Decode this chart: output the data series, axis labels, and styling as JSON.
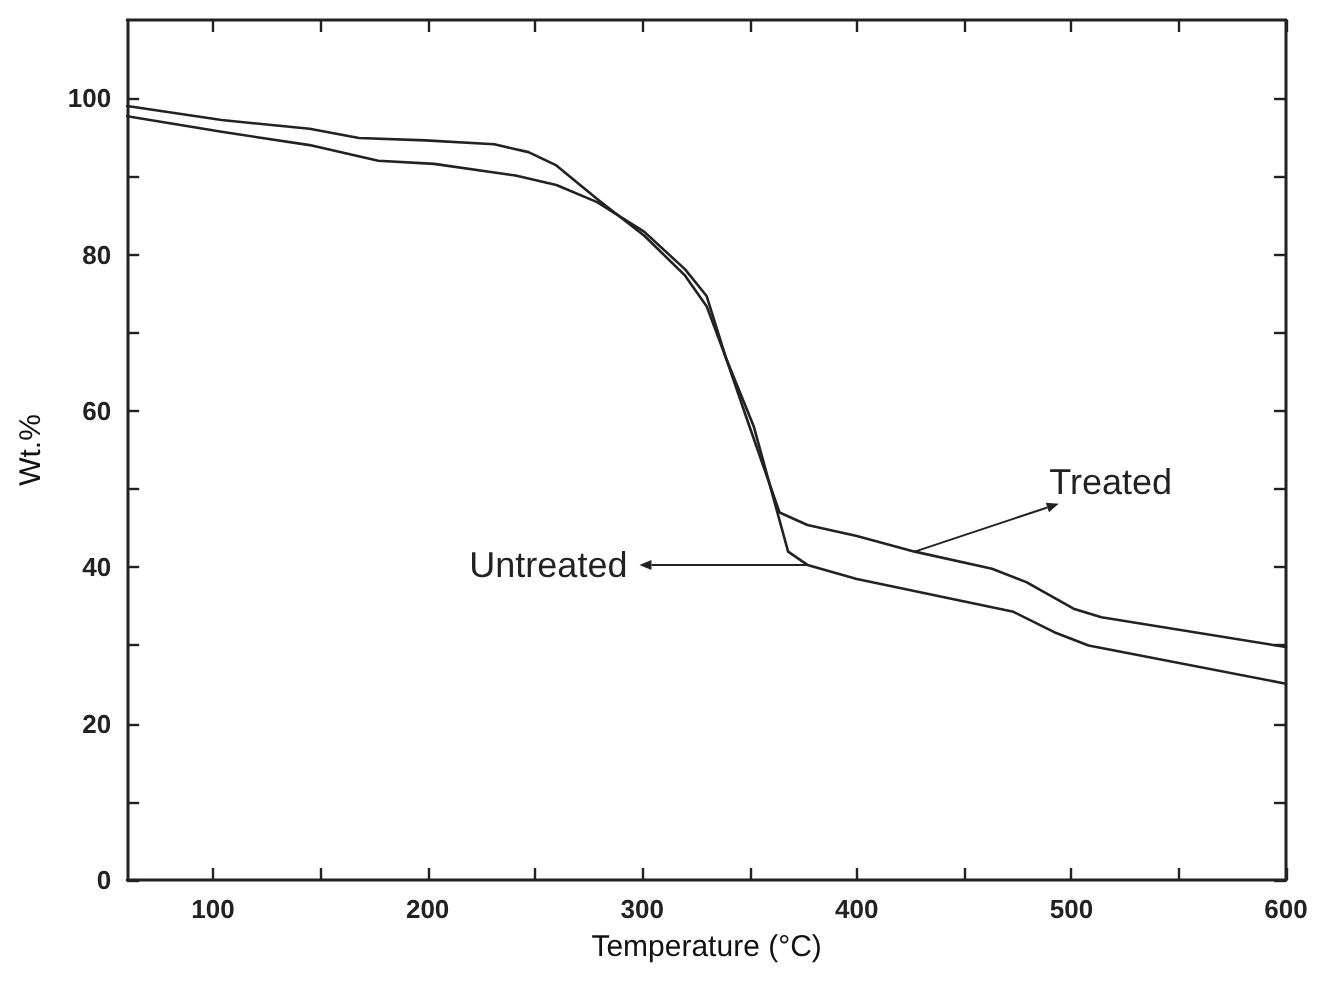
{
  "chart_data": {
    "type": "line",
    "xlabel": "Temperature (°C)",
    "ylabel": "Wt.%",
    "xlim": [
      60,
      600
    ],
    "ylim": [
      0,
      110
    ],
    "xticks": [
      100,
      {
        "value": 150,
        "label": null
      },
      200,
      {
        "value": 250,
        "label": null
      },
      300,
      {
        "value": 350,
        "label": null
      },
      400,
      {
        "value": 450,
        "label": null
      },
      500,
      {
        "value": 550,
        "label": null
      },
      600
    ],
    "yticks": [
      0,
      {
        "value": 10,
        "label": null
      },
      20,
      {
        "value": 30,
        "label": null
      },
      40,
      {
        "value": 50,
        "label": null
      },
      60,
      {
        "value": 70,
        "label": null
      },
      80,
      {
        "value": 90,
        "label": null
      },
      100
    ],
    "grid": false,
    "marker": "none",
    "line_style": "solid",
    "series": [
      {
        "name": "Treated",
        "color": "#222222",
        "x": [
          60,
          104,
          145,
          168,
          199,
          231,
          247,
          260,
          279,
          301,
          320,
          330,
          339,
          350,
          364,
          377,
          400,
          427,
          463,
          479,
          501,
          514,
          600
        ],
        "values": [
          99,
          97.2,
          96.1,
          94.9,
          94.6,
          94.1,
          93.1,
          91.4,
          87.1,
          82.4,
          77.3,
          73.4,
          66.8,
          58,
          47,
          45.4,
          44,
          42,
          39.8,
          38.1,
          34.7,
          33.6,
          29.8
        ]
      },
      {
        "name": "Untreated",
        "color": "#222222",
        "x": [
          60,
          104,
          145,
          177,
          203,
          241,
          260,
          279,
          301,
          320,
          330,
          339,
          352,
          368,
          377,
          400,
          473,
          492,
          508,
          600
        ],
        "values": [
          97.7,
          95.7,
          94,
          92,
          91.6,
          90.1,
          88.9,
          86.7,
          82.9,
          78.1,
          74.7,
          66.8,
          58,
          42,
          40.3,
          38.5,
          34.3,
          31.7,
          30,
          25.1
        ]
      }
    ]
  }
}
